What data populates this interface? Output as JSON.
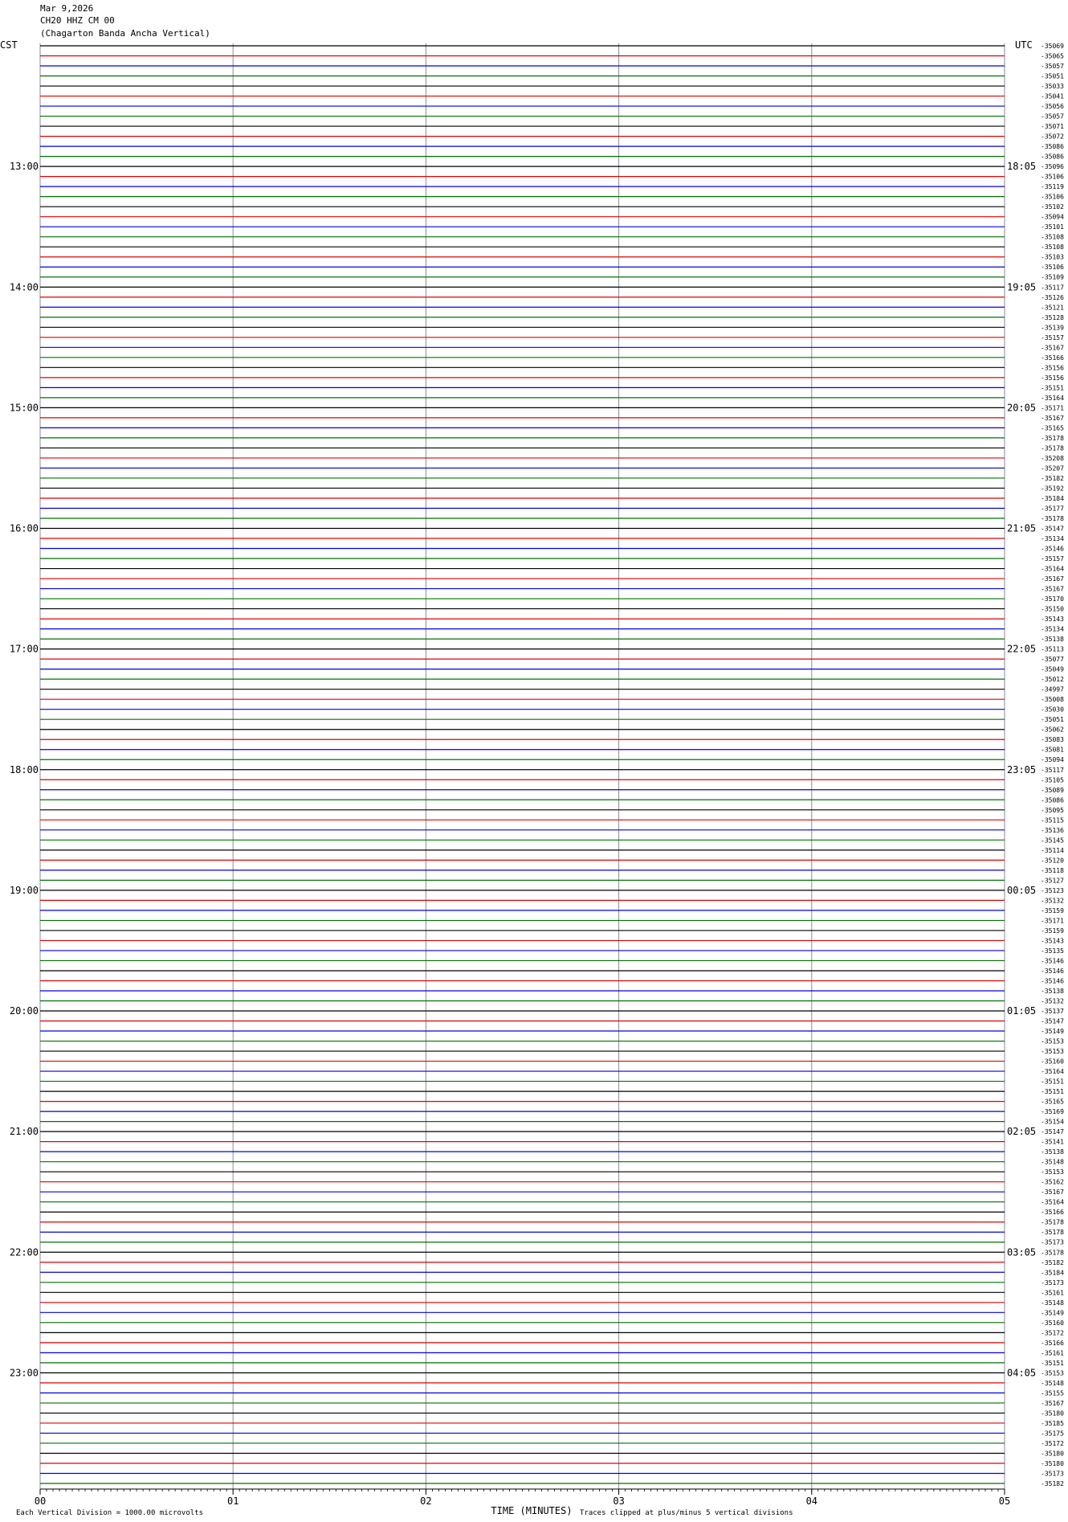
{
  "chart_data": {
    "type": "helicorder",
    "title": "Mar 9,2026",
    "subtitle": "CH20 HHZ CM 00",
    "station": "(Chagarton Banda Ancha Vertical)",
    "left_timezone": "CST",
    "right_timezone": "UTC",
    "xlabel": "TIME (MINUTES)",
    "scale_note": "Each Vertical Division = 1000.00 microvolts",
    "clip_note": "Traces clipped at plus/minus 5 vertical divisions",
    "xlim": [
      0,
      5
    ],
    "xticks": [
      {
        "value": 0,
        "label": "00"
      },
      {
        "value": 1,
        "label": "01"
      },
      {
        "value": 2,
        "label": "02"
      },
      {
        "value": 3,
        "label": "03"
      },
      {
        "value": 4,
        "label": "04"
      },
      {
        "value": 5,
        "label": "05"
      }
    ],
    "trace_colors": [
      "#000000",
      "#e00000",
      "#0000e0",
      "#007000"
    ],
    "cst": [
      null,
      null,
      null,
      null,
      null,
      null,
      null,
      null,
      null,
      null,
      null,
      null,
      "13:00",
      null,
      null,
      null,
      null,
      null,
      null,
      null,
      null,
      null,
      null,
      null,
      "14:00",
      null,
      null,
      null,
      null,
      null,
      null,
      null,
      null,
      null,
      null,
      null,
      "15:00",
      null,
      null,
      null,
      null,
      null,
      null,
      null,
      null,
      null,
      null,
      null,
      "16:00",
      null,
      null,
      null,
      null,
      null,
      null,
      null,
      null,
      null,
      null,
      null,
      "17:00",
      null,
      null,
      null,
      null,
      null,
      null,
      null,
      null,
      null,
      null,
      null,
      "18:00",
      null,
      null,
      null,
      null,
      null,
      null,
      null,
      null,
      null,
      null,
      null,
      "19:00",
      null,
      null,
      null,
      null,
      null,
      null,
      null,
      null,
      null,
      null,
      null,
      "20:00",
      null,
      null,
      null,
      null,
      null,
      null,
      null,
      null,
      null,
      null,
      null,
      "21:00",
      null,
      null,
      null,
      null,
      null,
      null,
      null,
      null,
      null,
      null,
      null,
      "22:00",
      null,
      null,
      null,
      null,
      null,
      null,
      null,
      null,
      null,
      null,
      null,
      "23:00",
      null,
      null,
      null,
      null,
      null,
      null,
      null,
      null,
      null,
      null,
      null
    ],
    "utc": [
      null,
      null,
      null,
      null,
      null,
      null,
      null,
      null,
      null,
      null,
      null,
      null,
      "18:05",
      null,
      null,
      null,
      null,
      null,
      null,
      null,
      null,
      null,
      null,
      null,
      "19:05",
      null,
      null,
      null,
      null,
      null,
      null,
      null,
      null,
      null,
      null,
      null,
      "20:05",
      null,
      null,
      null,
      null,
      null,
      null,
      null,
      null,
      null,
      null,
      null,
      "21:05",
      null,
      null,
      null,
      null,
      null,
      null,
      null,
      null,
      null,
      null,
      null,
      "22:05",
      null,
      null,
      null,
      null,
      null,
      null,
      null,
      null,
      null,
      null,
      null,
      "23:05",
      null,
      null,
      null,
      null,
      null,
      null,
      null,
      null,
      null,
      null,
      null,
      "00:05",
      null,
      null,
      null,
      null,
      null,
      null,
      null,
      null,
      null,
      null,
      null,
      "01:05",
      null,
      null,
      null,
      null,
      null,
      null,
      null,
      null,
      null,
      null,
      null,
      "02:05",
      null,
      null,
      null,
      null,
      null,
      null,
      null,
      null,
      null,
      null,
      null,
      "03:05",
      null,
      null,
      null,
      null,
      null,
      null,
      null,
      null,
      null,
      null,
      null,
      "04:05",
      null,
      null,
      null,
      null,
      null,
      null,
      null,
      null,
      null,
      null,
      null
    ],
    "offsets": [
      -35069,
      -35065,
      -35057,
      -35051,
      -35033,
      -35041,
      -35056,
      -35057,
      -35071,
      -35072,
      -35086,
      -35086,
      -35096,
      -35106,
      -35119,
      -35106,
      -35102,
      -35094,
      -35101,
      -35108,
      -35108,
      -35103,
      -35106,
      -35109,
      -35117,
      -35126,
      -35121,
      -35128,
      -35139,
      -35157,
      -35167,
      -35166,
      -35156,
      -35156,
      -35151,
      -35164,
      -35171,
      -35167,
      -35165,
      -35178,
      -35178,
      -35208,
      -35207,
      -35182,
      -35192,
      -35184,
      -35177,
      -35178,
      -35147,
      -35134,
      -35146,
      -35157,
      -35164,
      -35167,
      -35167,
      -35170,
      -35150,
      -35143,
      -35134,
      -35138,
      -35113,
      -35077,
      -35049,
      -35012,
      -34997,
      -35008,
      -35030,
      -35051,
      -35062,
      -35083,
      -35081,
      -35094,
      -35117,
      -35105,
      -35089,
      -35086,
      -35095,
      -35115,
      -35136,
      -35145,
      -35114,
      -35120,
      -35118,
      -35127,
      -35123,
      -35132,
      -35159,
      -35171,
      -35159,
      -35143,
      -35135,
      -35146,
      -35146,
      -35146,
      -35138,
      -35132,
      -35137,
      -35147,
      -35149,
      -35153,
      -35153,
      -35160,
      -35164,
      -35151,
      -35151,
      -35165,
      -35169,
      -35154,
      -35147,
      -35141,
      -35138,
      -35148,
      -35153,
      -35162,
      -35167,
      -35164,
      -35166,
      -35178,
      -35178,
      -35173,
      -35178,
      -35182,
      -35184,
      -35173,
      -35161,
      -35148,
      -35149,
      -35160,
      -35172,
      -35166,
      -35161,
      -35151,
      -35153,
      -35148,
      -35155,
      -35167,
      -35180,
      -35185,
      -35175,
      -35172,
      -35180,
      -35180,
      -35173,
      -35182
    ]
  }
}
